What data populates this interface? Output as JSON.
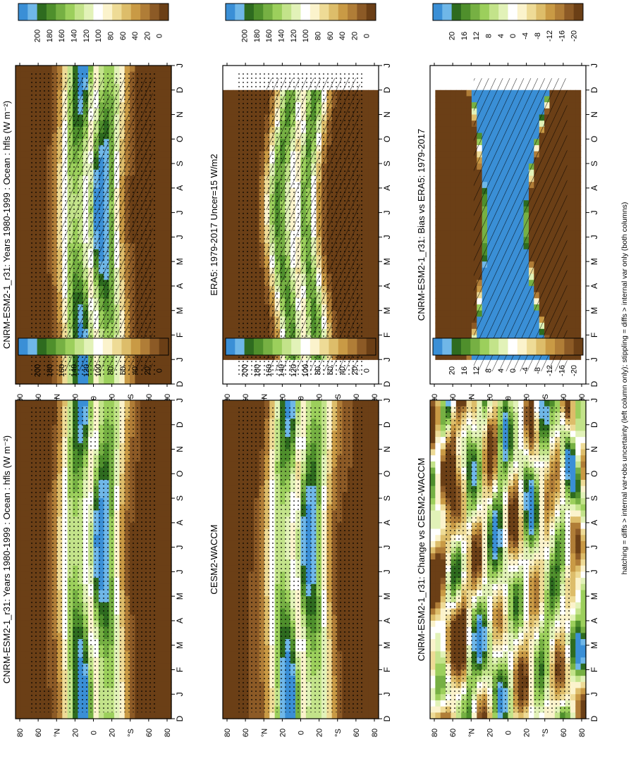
{
  "footnote": "hatching = diffs > internal var+obs uncertainty (left column only); stippling = diffs > internal var only (both columns)",
  "colors": {
    "scale": [
      "#3a8fd6",
      "#6fb7e8",
      "#2e6b1f",
      "#4f8f2c",
      "#76b043",
      "#9ccf5c",
      "#c3e38a",
      "#e2f2b8",
      "#ffffff",
      "#fbf3cc",
      "#eedb96",
      "#ddbd6a",
      "#c99a45",
      "#b07d37",
      "#8c5a26",
      "#6b3f16"
    ]
  },
  "chart_data": [
    {
      "id": "p1",
      "type": "heatmap",
      "title": "CNRM-ESM2-1_r31: Years 1980-1999 : Ocean : hfls (W m⁻²)",
      "x_ticks": [
        "D",
        "J",
        "F",
        "M",
        "A",
        "M",
        "J",
        "J",
        "A",
        "S",
        "O",
        "N",
        "D",
        "J"
      ],
      "y_ticks": [
        "80",
        "60",
        "°N",
        "20",
        "0",
        "20",
        "°S",
        "60",
        "80"
      ],
      "colorbar_labels": [
        "200",
        "180",
        "160",
        "140",
        "120",
        "100",
        "80",
        "60",
        "40",
        "20",
        "0"
      ],
      "overlay": "hatching+stippling"
    },
    {
      "id": "p2",
      "type": "heatmap",
      "title": "CNRM-ESM2-1_r31: Years 1980-1999 : Ocean : hfls (W m⁻²)",
      "x_ticks": [
        "D",
        "J",
        "F",
        "M",
        "A",
        "M",
        "J",
        "J",
        "A",
        "S",
        "O",
        "N",
        "D",
        "J"
      ],
      "y_ticks": [
        "80",
        "60",
        "°N",
        "20",
        "0",
        "20",
        "°S",
        "60",
        "80"
      ],
      "colorbar_labels": [
        "200",
        "180",
        "160",
        "140",
        "120",
        "100",
        "80",
        "60",
        "40",
        "20",
        "0"
      ],
      "overlay": "stippling"
    },
    {
      "id": "p3",
      "type": "heatmap",
      "title": "ERA5: 1979-2017 Uncer=15 W/m2",
      "x_ticks": [
        "D",
        "J",
        "F",
        "M",
        "A",
        "M",
        "J",
        "J",
        "A",
        "S",
        "O",
        "N",
        "D",
        "J"
      ],
      "y_ticks": [
        "80",
        "60",
        "°N",
        "20",
        "0",
        "20",
        "°S",
        "60",
        "80"
      ],
      "colorbar_labels": [
        "200",
        "180",
        "160",
        "140",
        "120",
        "100",
        "80",
        "60",
        "40",
        "20",
        "0"
      ],
      "overlay": "hatching+stippling"
    },
    {
      "id": "p4",
      "type": "heatmap",
      "title": "CESM2-WACCM",
      "x_ticks": [
        "D",
        "J",
        "F",
        "M",
        "A",
        "M",
        "J",
        "J",
        "A",
        "S",
        "O",
        "N",
        "D",
        "J"
      ],
      "y_ticks": [
        "80",
        "60",
        "°N",
        "20",
        "0",
        "20",
        "°S",
        "60",
        "80"
      ],
      "colorbar_labels": [
        "200",
        "180",
        "160",
        "140",
        "120",
        "100",
        "80",
        "60",
        "40",
        "20",
        "0"
      ],
      "overlay": "stippling"
    },
    {
      "id": "p5",
      "type": "heatmap",
      "title": "CNRM-ESM2-1_r31: Bias vs ERA5: 1979-2017",
      "x_ticks": [
        "D",
        "J",
        "F",
        "M",
        "A",
        "M",
        "J",
        "J",
        "A",
        "S",
        "O",
        "N",
        "D",
        "J"
      ],
      "y_ticks": [
        "80",
        "60",
        "°N",
        "20",
        "0",
        "20",
        "°S",
        "60",
        "80"
      ],
      "colorbar_labels": [
        "20",
        "16",
        "12",
        "8",
        "4",
        "0",
        "-4",
        "-8",
        "-12",
        "-16",
        "-20"
      ],
      "overlay": "hatching"
    },
    {
      "id": "p6",
      "type": "heatmap",
      "title": "CNRM-ESM2-1_r31: Change vs CESM2-WACCM",
      "x_ticks": [
        "D",
        "J",
        "F",
        "M",
        "A",
        "M",
        "J",
        "J",
        "A",
        "S",
        "O",
        "N",
        "D",
        "J"
      ],
      "y_ticks": [
        "80",
        "60",
        "°N",
        "20",
        "0",
        "20",
        "°S",
        "60",
        "80"
      ],
      "colorbar_labels": [
        "20",
        "16",
        "12",
        "8",
        "4",
        "0",
        "-4",
        "-8",
        "-12",
        "-16",
        "-20"
      ],
      "overlay": "stippling"
    }
  ]
}
